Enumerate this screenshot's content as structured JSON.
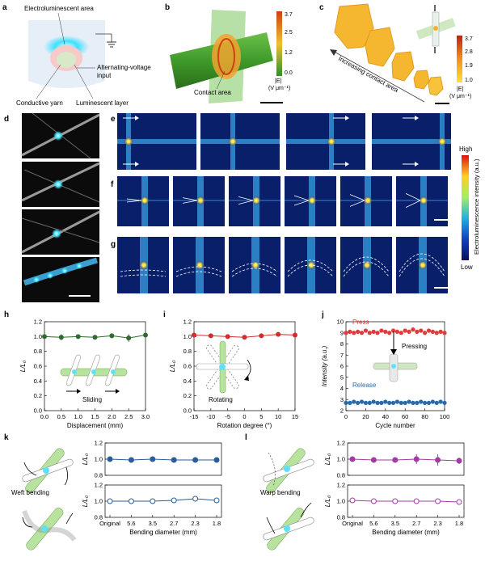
{
  "panels": {
    "a": {
      "letter": "a",
      "labels": {
        "electroluminescent_area": "Electroluminescent area",
        "alternating_voltage": "Alternating-voltage",
        "input": "input",
        "conductive_yarn": "Conductive yarn",
        "luminescent_layer": "Luminescent layer"
      }
    },
    "b": {
      "letter": "b",
      "contact_area": "Contact area",
      "colorbar": {
        "max": "3.7",
        "mid": "2.5",
        "low": "1.2",
        "min": "0.0",
        "symbol": "|E|",
        "unit": "(V μm⁻¹)"
      }
    },
    "c": {
      "letter": "c",
      "arrow_label": "Increasing contact area",
      "colorbar": {
        "max": "3.7",
        "t2": "2.8",
        "t3": "1.9",
        "min": "1.0",
        "symbol": "|E|",
        "unit": "(V μm⁻¹)"
      }
    },
    "d": {
      "letter": "d"
    },
    "e": {
      "letter": "e"
    },
    "f": {
      "letter": "f"
    },
    "g": {
      "letter": "g"
    },
    "intensity_colorbar": {
      "high": "High",
      "low": "Low",
      "title": "Electroluminescence intensity (a.u.)"
    },
    "h": {
      "letter": "h",
      "inset_label": "Sliding"
    },
    "i": {
      "letter": "i",
      "inset_label": "Rotating"
    },
    "j": {
      "letter": "j",
      "press": "Press",
      "release": "Release",
      "inset_label": "Pressing"
    },
    "k": {
      "letter": "k",
      "inset_label": "Weft bending"
    },
    "l": {
      "letter": "l",
      "inset_label": "Warp bending"
    }
  },
  "chart_data": [
    {
      "id": "h",
      "type": "line",
      "x": [
        0.0,
        0.5,
        1.0,
        1.5,
        2.0,
        2.5,
        3.0
      ],
      "y": [
        1.0,
        0.99,
        1.0,
        0.99,
        1.01,
        0.98,
        1.02
      ],
      "err": [
        0.02,
        0.04,
        0.03,
        0.02,
        0.03,
        0.05,
        0.03
      ],
      "xlabel": "Displacement (mm)",
      "ylabel": "L/L₀",
      "xlim": [
        0,
        3
      ],
      "ylim": [
        0.0,
        1.2
      ],
      "xticks": [
        "0.0",
        "0.5",
        "1.0",
        "1.5",
        "2.0",
        "2.5",
        "3.0"
      ],
      "yticks": [
        "0.0",
        "0.2",
        "0.4",
        "0.6",
        "0.8",
        "1.0",
        "1.2"
      ],
      "color": "#2e6b2e"
    },
    {
      "id": "i",
      "type": "line",
      "x": [
        -15,
        -10,
        -5,
        0,
        5,
        10,
        15
      ],
      "y": [
        1.02,
        1.01,
        1.0,
        0.99,
        1.01,
        1.03,
        1.02
      ],
      "err": [
        0.02,
        0.02,
        0.02,
        0.01,
        0.02,
        0.03,
        0.03
      ],
      "xlabel": "Rotation degree (°)",
      "ylabel": "L/L₀",
      "xlim": [
        -15,
        15
      ],
      "ylim": [
        0.0,
        1.2
      ],
      "xticks": [
        "-15",
        "-10",
        "-5",
        "0",
        "5",
        "10",
        "15"
      ],
      "yticks": [
        "0.0",
        "0.2",
        "0.4",
        "0.6",
        "0.8",
        "1.0",
        "1.2"
      ],
      "color": "#d62a2a"
    },
    {
      "id": "j",
      "type": "scatter",
      "x_press": [
        0,
        4,
        8,
        12,
        16,
        20,
        24,
        28,
        32,
        36,
        40,
        44,
        48,
        52,
        56,
        60,
        64,
        68,
        72,
        76,
        80,
        84,
        88,
        92,
        96,
        100
      ],
      "press": [
        9.0,
        9.1,
        9.0,
        9.1,
        9.0,
        9.2,
        9.0,
        9.1,
        9.0,
        9.2,
        9.1,
        9.0,
        9.2,
        9.1,
        9.0,
        9.2,
        9.1,
        9.3,
        9.1,
        9.2,
        9.0,
        9.2,
        9.1,
        9.0,
        9.1,
        9.0
      ],
      "release": [
        2.7,
        2.7,
        2.8,
        2.7,
        2.8,
        2.7,
        2.7,
        2.8,
        2.7,
        2.7,
        2.8,
        2.7,
        2.7,
        2.8,
        2.7,
        2.7,
        2.8,
        2.7,
        2.7,
        2.8,
        2.7,
        2.7,
        2.8,
        2.7,
        2.8,
        2.7
      ],
      "xlabel": "Cycle number",
      "ylabel": "Intensity (a.u.)",
      "xlim": [
        0,
        100
      ],
      "ylim": [
        2,
        10
      ],
      "xticks": [
        "0",
        "20",
        "40",
        "60",
        "80",
        "100"
      ],
      "yticks": [
        "2",
        "3",
        "4",
        "5",
        "6",
        "7",
        "8",
        "9",
        "10"
      ],
      "colors": {
        "press": "#e03a3a",
        "release": "#2a6aa8"
      }
    },
    {
      "id": "k",
      "type": "line",
      "categories": [
        "Original",
        "5.6",
        "3.5",
        "2.7",
        "2.3",
        "1.8"
      ],
      "top": {
        "y": [
          1.0,
          0.99,
          1.0,
          0.99,
          0.99,
          0.99
        ],
        "err": [
          0.01,
          0.01,
          0.01,
          0.01,
          0.01,
          0.01
        ],
        "filled": true
      },
      "bottom": {
        "y": [
          1.0,
          1.0,
          1.0,
          1.01,
          1.03,
          1.01
        ],
        "err": [
          0.01,
          0.02,
          0.02,
          0.01,
          0.02,
          0.01
        ],
        "filled": false
      },
      "xlabel": "Bending diameter (mm)",
      "ylabel": "L/L₀",
      "ylim": [
        0.8,
        1.2
      ],
      "yticks": [
        "0.8",
        "1.0",
        "1.2"
      ],
      "color": "#2a5d9a"
    },
    {
      "id": "l",
      "type": "line",
      "categories": [
        "Original",
        "5.6",
        "3.5",
        "2.7",
        "2.3",
        "1.8"
      ],
      "top": {
        "y": [
          1.0,
          0.99,
          0.99,
          1.0,
          0.99,
          0.98
        ],
        "err": [
          0.01,
          0.02,
          0.03,
          0.06,
          0.07,
          0.04
        ],
        "filled": true
      },
      "bottom": {
        "y": [
          1.01,
          1.0,
          1.0,
          1.0,
          1.0,
          0.99
        ],
        "err": [
          0.01,
          0.01,
          0.01,
          0.01,
          0.01,
          0.01
        ],
        "filled": false
      },
      "xlabel": "Bending diameter (mm)",
      "ylabel": "L/L₀",
      "ylim": [
        0.8,
        1.2
      ],
      "yticks": [
        "0.8",
        "1.0",
        "1.2"
      ],
      "color": "#a23ca2"
    }
  ]
}
